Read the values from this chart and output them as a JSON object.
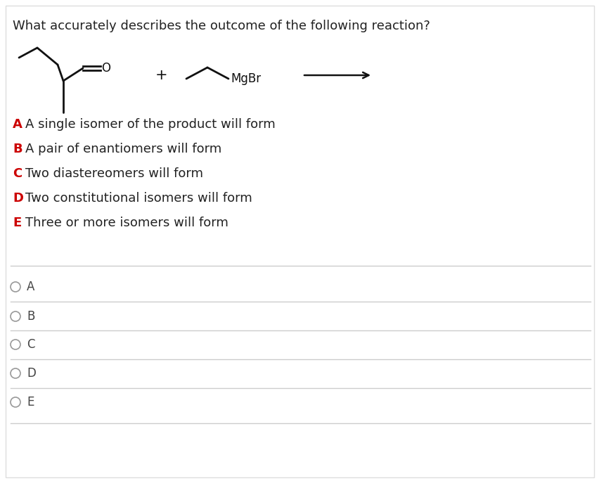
{
  "title": "What accurately describes the outcome of the following reaction?",
  "title_fontsize": 13,
  "title_color": "#222222",
  "title_fontweight": "normal",
  "options": [
    {
      "letter": "A",
      "text": "A single isomer of the product will form"
    },
    {
      "letter": "B",
      "text": "A pair of enantiomers will form"
    },
    {
      "letter": "C",
      "text": "Two diastereomers will form"
    },
    {
      "letter": "D",
      "text": "Two constitutional isomers will form"
    },
    {
      "letter": "E",
      "text": "Three or more isomers will form"
    }
  ],
  "option_letter_color": "#cc0000",
  "option_text_color": "#222222",
  "option_fontsize": 13,
  "radio_options": [
    "A",
    "B",
    "C",
    "D",
    "E"
  ],
  "radio_fontsize": 12,
  "radio_color": "#444444",
  "radio_circle_color": "#999999",
  "separator_color": "#cccccc",
  "background_color": "#ffffff",
  "fig_width": 8.53,
  "fig_height": 6.87,
  "dpi": 100
}
